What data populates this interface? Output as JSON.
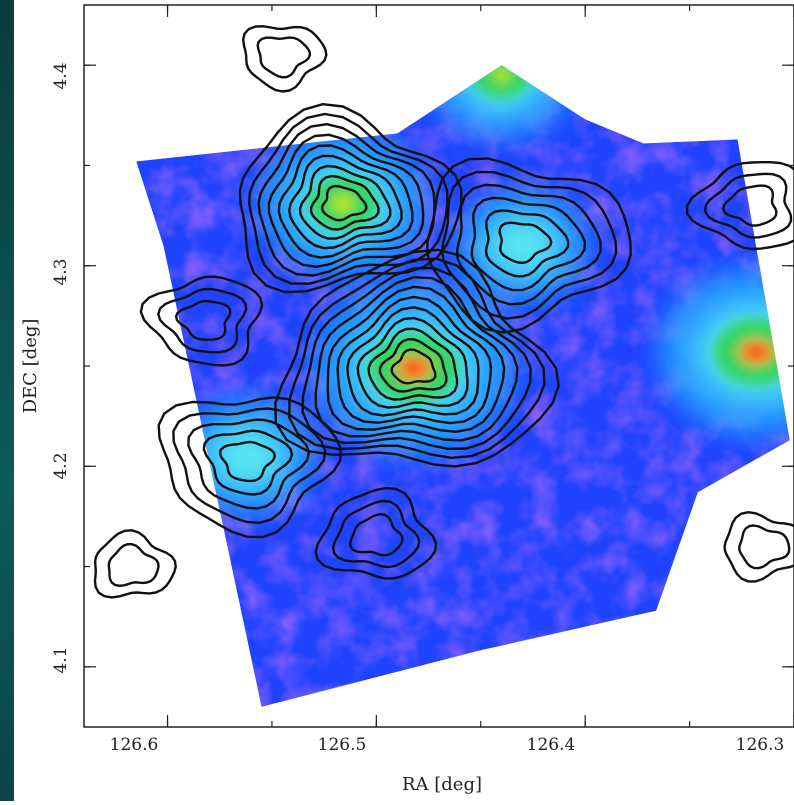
{
  "chart_data": {
    "type": "heatmap",
    "title": "",
    "xlabel": "RA [deg]",
    "ylabel": "DEC [deg]",
    "xlim": [
      126.64,
      126.3
    ],
    "ylim": [
      4.07,
      4.43
    ],
    "x_ticks": [
      126.6,
      126.5,
      126.4,
      126.3
    ],
    "y_ticks": [
      4.1,
      4.2,
      4.3,
      4.4
    ],
    "x_tick_labels": [
      "126.6",
      "126.5",
      "126.4",
      "126.3"
    ],
    "y_tick_labels": [
      "4.1",
      "4.2",
      "4.3",
      "4.4"
    ],
    "grid": false,
    "colormap": [
      "#3b1ad6",
      "#1f43ff",
      "#22a7ff",
      "#5cf0f0",
      "#2fd35a",
      "#b8e61a",
      "#ff8a1a",
      "#ff1a1a",
      "#ffffff"
    ],
    "field_polygon": [
      [
        126.615,
        4.352
      ],
      [
        126.49,
        4.366
      ],
      [
        126.44,
        4.4
      ],
      [
        126.4,
        4.373
      ],
      [
        126.372,
        4.361
      ],
      [
        126.327,
        4.363
      ],
      [
        126.302,
        4.213
      ],
      [
        126.346,
        4.187
      ],
      [
        126.366,
        4.128
      ],
      [
        126.451,
        4.108
      ],
      [
        126.555,
        4.08
      ],
      [
        126.602,
        4.31
      ]
    ],
    "image_peaks": [
      {
        "ra": 126.482,
        "dec": 4.249,
        "intensity": 1.0
      },
      {
        "ra": 126.516,
        "dec": 4.331,
        "intensity": 0.72
      },
      {
        "ra": 126.318,
        "dec": 4.257,
        "intensity": 0.95
      },
      {
        "ra": 126.44,
        "dec": 4.395,
        "intensity": 0.55
      },
      {
        "ra": 126.562,
        "dec": 4.205,
        "intensity": 0.45
      },
      {
        "ra": 126.43,
        "dec": 4.31,
        "intensity": 0.42
      }
    ],
    "contours": [
      {
        "ra": 126.482,
        "dec": 4.249,
        "levels": 11
      },
      {
        "ra": 126.516,
        "dec": 4.331,
        "levels": 9
      },
      {
        "ra": 126.43,
        "dec": 4.312,
        "levels": 6
      },
      {
        "ra": 126.562,
        "dec": 4.203,
        "levels": 5
      },
      {
        "ra": 126.582,
        "dec": 4.273,
        "levels": 3
      },
      {
        "ra": 126.32,
        "dec": 4.33,
        "levels": 3
      },
      {
        "ra": 126.5,
        "dec": 4.165,
        "levels": 3
      },
      {
        "ra": 126.617,
        "dec": 4.15,
        "levels": 2
      },
      {
        "ra": 126.315,
        "dec": 4.16,
        "levels": 2
      },
      {
        "ra": 126.545,
        "dec": 4.405,
        "levels": 2
      }
    ]
  }
}
